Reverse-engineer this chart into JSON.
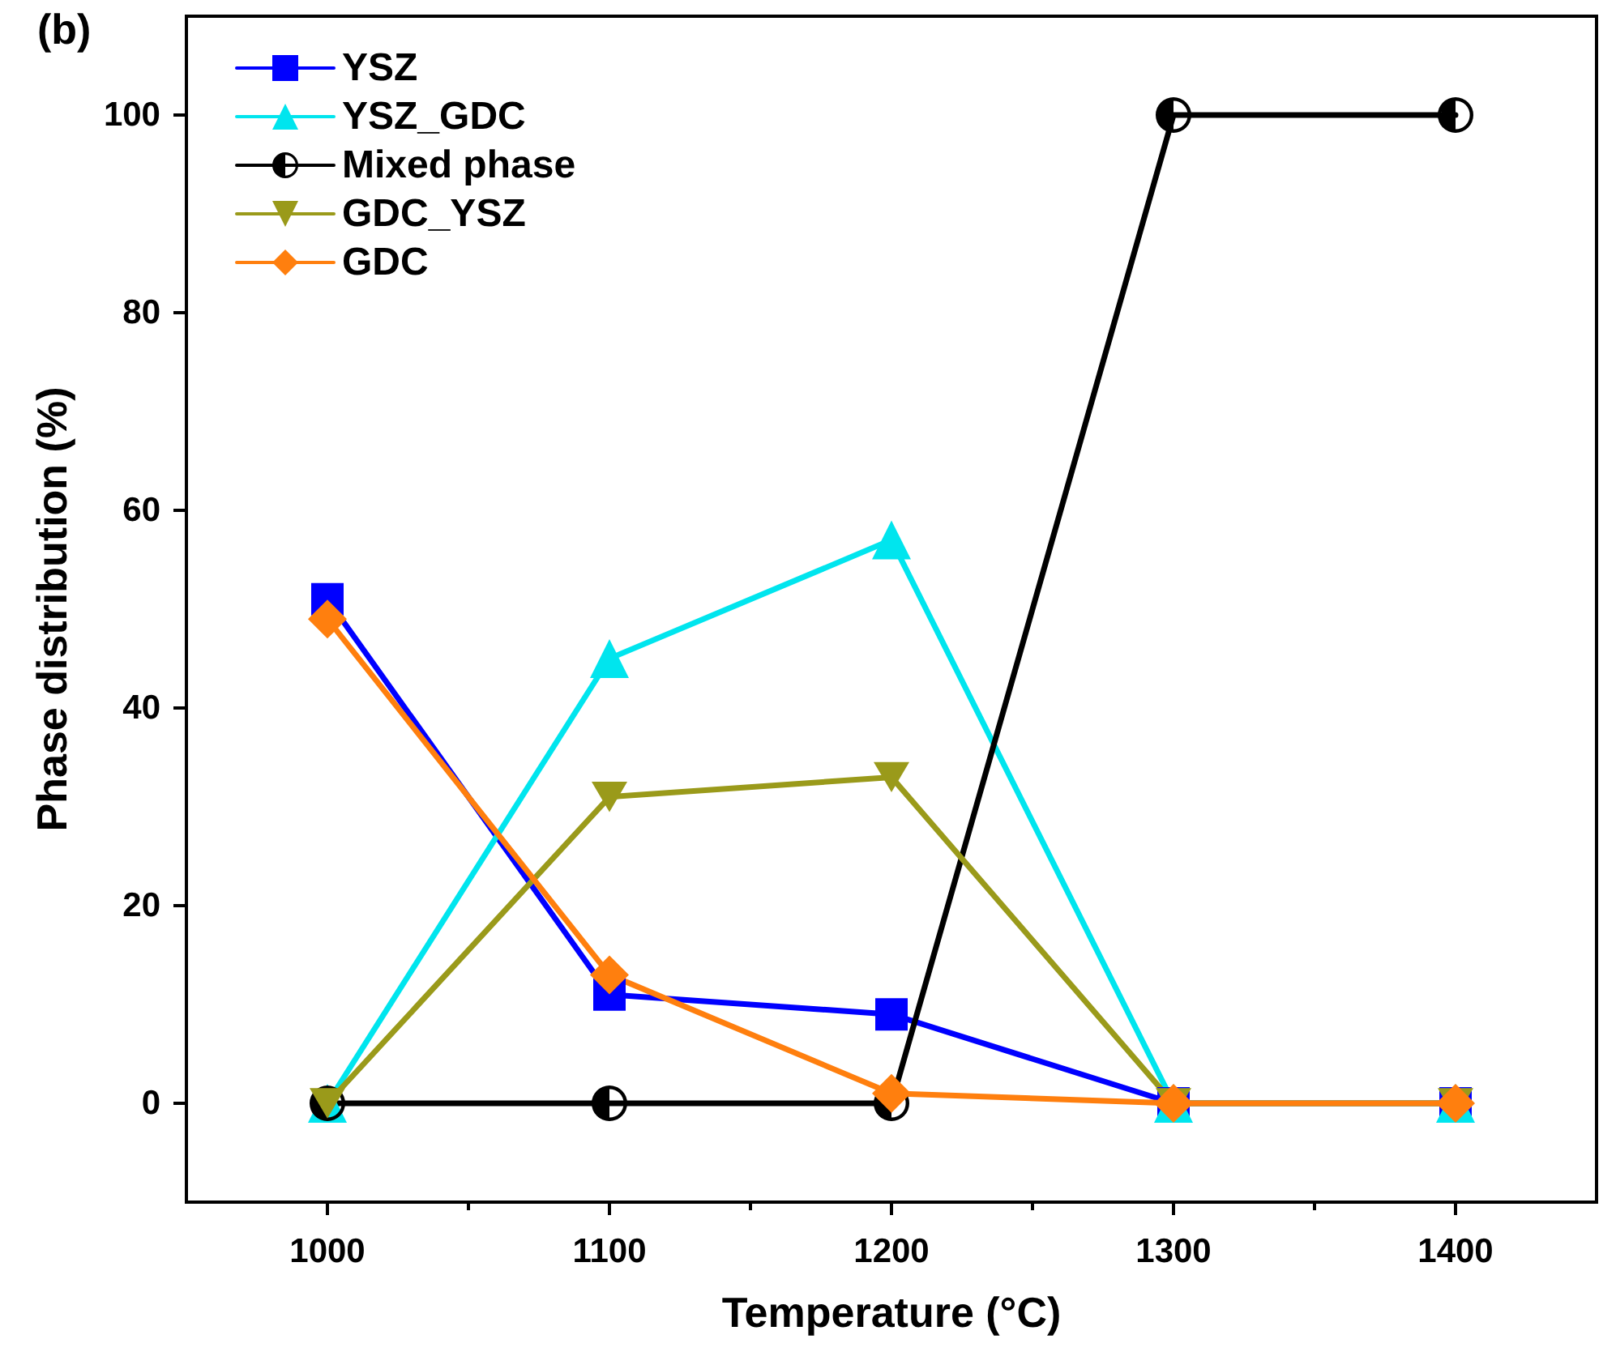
{
  "chart_data": {
    "type": "line",
    "xlabel": "Temperature (°C)",
    "ylabel": "Phase distribution (%)",
    "annotations": [
      "(b)"
    ],
    "x": [
      1000,
      1100,
      1200,
      1300,
      1400
    ],
    "xlim": [
      950,
      1450
    ],
    "xticks": [
      1000,
      1100,
      1200,
      1300,
      1400
    ],
    "ylim": [
      -10,
      110
    ],
    "yticks": [
      0,
      20,
      40,
      60,
      80,
      100
    ],
    "grid": false,
    "legend": "top left",
    "series": [
      {
        "name": "YSZ",
        "color": "#0000ff",
        "marker": "square",
        "values": [
          51,
          11,
          9,
          0,
          0
        ]
      },
      {
        "name": "YSZ_GDC",
        "color": "#00e5ee",
        "marker": "triangle",
        "values": [
          0,
          45,
          57,
          0,
          0
        ]
      },
      {
        "name": "Mixed phase",
        "color": "#000000",
        "marker": "circle",
        "values": [
          0,
          0,
          0,
          100,
          100
        ]
      },
      {
        "name": "GDC_YSZ",
        "color": "#9a9a1a",
        "marker": "triangle-down",
        "values": [
          0,
          31,
          33,
          0,
          0
        ]
      },
      {
        "name": "GDC",
        "color": "#ff7f0e",
        "marker": "diamond",
        "values": [
          49,
          13,
          1,
          0,
          0
        ]
      }
    ]
  }
}
